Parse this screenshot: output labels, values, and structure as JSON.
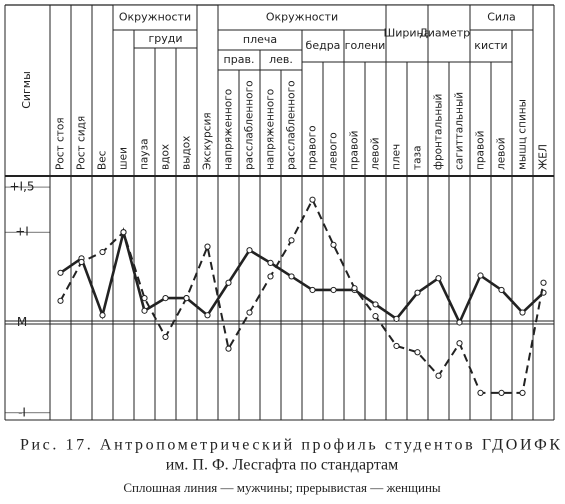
{
  "chart_data": {
    "type": "line",
    "y_label": "Сигмы",
    "categories": [
      "Рост стоя",
      "Рост сидя",
      "Вес",
      "шеи",
      "пауза",
      "вдох",
      "выдох",
      "Экскурсия",
      "напряженного",
      "расслабленного",
      "напряженного",
      "расслабленного",
      "правого",
      "левого",
      "правой",
      "левой",
      "плеч",
      "таза",
      "фронтальный",
      "сагиттальный",
      "правой",
      "левой",
      "мышц спины",
      "ЖЕЛ"
    ],
    "groups": [
      "Окружности",
      "груди",
      "Окружности",
      "плеча",
      "прав.",
      "лев.",
      "бедра",
      "голени",
      "Ширина",
      "Диаметры",
      "Сила",
      "кисти"
    ],
    "series": [
      {
        "color": "#222",
        "dashed": false,
        "values": [
          0.55,
          0.71,
          0.08,
          1.0,
          0.13,
          0.27,
          0.27,
          0.08,
          0.44,
          0.8,
          0.66,
          0.51,
          0.36,
          0.36,
          0.36,
          0.2,
          0.04,
          0.33,
          0.49,
          0.0,
          0.52,
          0.36,
          0.11,
          0.33
        ]
      },
      {
        "color": "#222",
        "dashed": true,
        "values": [
          0.24,
          0.67,
          0.78,
          1.0,
          0.27,
          -0.16,
          0.27,
          0.84,
          -0.29,
          0.11,
          0.51,
          0.91,
          1.36,
          0.86,
          0.38,
          0.07,
          -0.26,
          -0.33,
          -0.59,
          -0.23,
          -0.78,
          -0.78,
          -0.78,
          0.44
        ]
      }
    ],
    "ylim": [
      -1.08,
      1.6
    ],
    "yticks": [
      {
        "value": 1.5,
        "label": "+I,5"
      },
      {
        "value": 1,
        "label": "+I"
      },
      {
        "value": 0,
        "label": "M"
      },
      {
        "value": -1,
        "label": "-I"
      }
    ],
    "caption_line1": "Рис.  17.  Антропометрический  профиль  студентов  ГДОИФК",
    "caption_line2": "им. П. Ф. Лесгафта по стандартам",
    "note": "Сплошная линия — мужчины; прерывистая — женщины"
  }
}
